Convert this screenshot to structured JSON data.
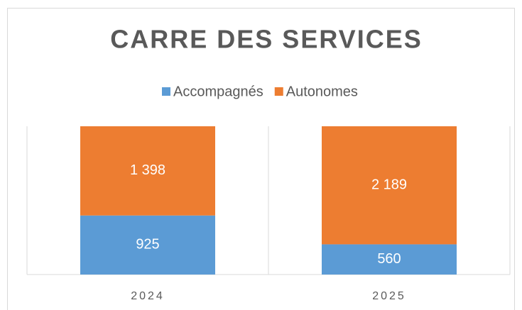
{
  "chart_data": {
    "type": "bar",
    "stacking": "percent",
    "title": "CARRE DES SERVICES",
    "categories": [
      "2024",
      "2025"
    ],
    "series": [
      {
        "name": "Accompagnés",
        "color": "#5b9bd5",
        "values": [
          925,
          560
        ],
        "value_labels": [
          "925",
          "560"
        ]
      },
      {
        "name": "Autonomes",
        "color": "#ed7d31",
        "values": [
          1398,
          2189
        ],
        "value_labels": [
          "1 398",
          "2 189"
        ]
      }
    ],
    "legend": "top"
  }
}
